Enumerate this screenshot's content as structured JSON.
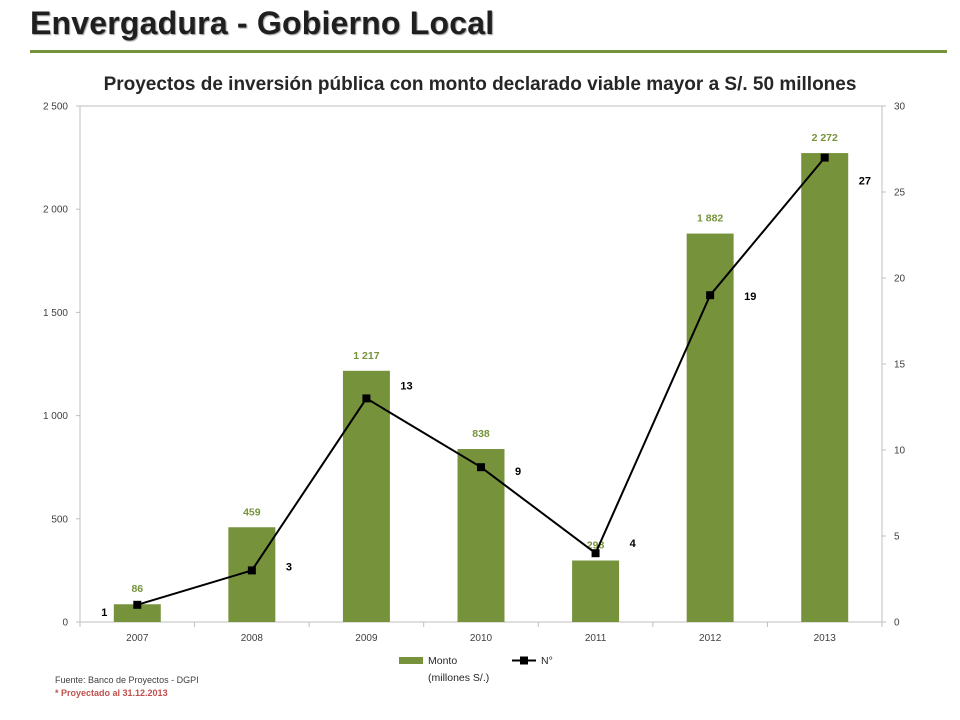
{
  "slide": {
    "title": "Envergadura - Gobierno Local",
    "source": "Fuente: Banco de Proyectos - DGPI",
    "note": "* Proyectado al 31.12.2013"
  },
  "colors": {
    "bar": "#76933c",
    "bar_label": "#76933c",
    "line": "#000000",
    "rule": "#76933c",
    "note": "#c0504d"
  },
  "chart_data": {
    "type": "bar",
    "title": "Proyectos de inversión pública con monto declarado viable mayor a S/. 50 millones",
    "categories": [
      "2007",
      "2008",
      "2009",
      "2010",
      "2011",
      "2012",
      "2013"
    ],
    "series": [
      {
        "name": "Monto (millones S/.)",
        "type": "bar",
        "axis": "left",
        "values": [
          86,
          459,
          1217,
          838,
          298,
          1882,
          2272
        ],
        "labels": [
          "86",
          "459",
          "1 217",
          "838",
          "298",
          "1 882",
          "2 272"
        ]
      },
      {
        "name": "N°",
        "type": "line",
        "axis": "right",
        "values": [
          1,
          3,
          13,
          9,
          4,
          19,
          27
        ],
        "labels": [
          "1",
          "3",
          "13",
          "9",
          "4",
          "19",
          "27"
        ]
      }
    ],
    "y_left": {
      "min": 0,
      "max": 2500,
      "ticks": [
        0,
        500,
        1000,
        1500,
        2000,
        2500
      ],
      "tick_labels": [
        "0",
        "500",
        "1 000",
        "1 500",
        "2 000",
        "2 500"
      ]
    },
    "y_right": {
      "min": 0,
      "max": 30,
      "ticks": [
        0,
        5,
        10,
        15,
        20,
        25,
        30
      ],
      "tick_labels": [
        "0",
        "5",
        "10",
        "15",
        "20",
        "25",
        "30"
      ]
    },
    "legend": {
      "position": "bottom",
      "items": [
        {
          "line1": "Monto",
          "line2": "(millones S/.)"
        },
        {
          "line1": "N°"
        }
      ]
    },
    "grid": false
  }
}
